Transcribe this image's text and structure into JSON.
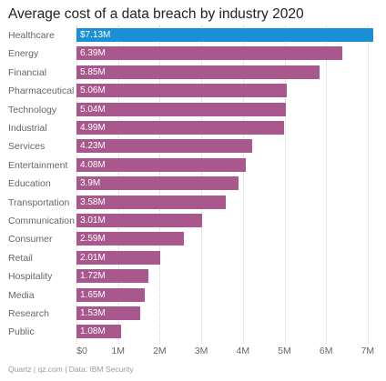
{
  "footer": "Quartz | qz.com | Data: IBM Security",
  "chart_data": {
    "type": "bar",
    "orientation": "horizontal",
    "title": "Average cost of a data breach by industry 2020",
    "xlabel": "",
    "ylabel": "",
    "xlim": [
      0,
      7.2
    ],
    "grid": true,
    "legend": "none",
    "colors": {
      "highlight": "#1a8fd6",
      "default": "#a8588c"
    },
    "highlight_category": "Healthcare",
    "categories": [
      "Healthcare",
      "Energy",
      "Financial",
      "Pharmaceutical",
      "Technology",
      "Industrial",
      "Services",
      "Entertainment",
      "Education",
      "Transportation",
      "Communication",
      "Consumer",
      "Retail",
      "Hospitality",
      "Media",
      "Research",
      "Public"
    ],
    "values": [
      7.13,
      6.39,
      5.85,
      5.06,
      5.04,
      4.99,
      4.23,
      4.08,
      3.9,
      3.58,
      3.01,
      2.59,
      2.01,
      1.72,
      1.65,
      1.53,
      1.08
    ],
    "value_labels": [
      "$7.13M",
      "6.39M",
      "5.85M",
      "5.06M",
      "5.04M",
      "4.99M",
      "4.23M",
      "4.08M",
      "3.9M",
      "3.58M",
      "3.01M",
      "2.59M",
      "2.01M",
      "1.72M",
      "1.65M",
      "1.53M",
      "1.08M"
    ],
    "ticks": [
      0,
      1,
      2,
      3,
      4,
      5,
      6,
      7
    ],
    "tick_labels": [
      "$0",
      "1M",
      "2M",
      "3M",
      "4M",
      "5M",
      "6M",
      "7M"
    ]
  }
}
